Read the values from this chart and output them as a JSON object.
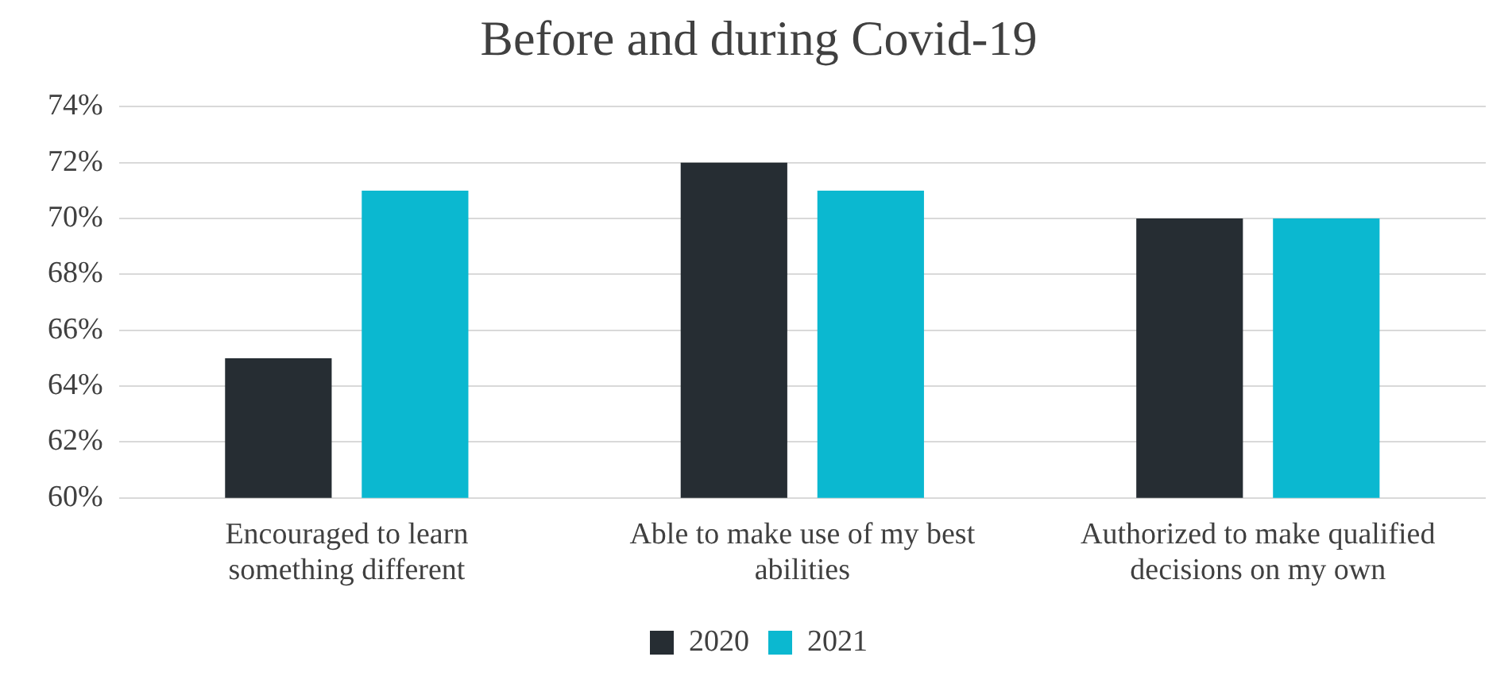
{
  "chart_data": {
    "type": "bar",
    "title": "Before and during Covid-19",
    "categories": [
      "Encouraged to learn something different",
      "Able to make use of my best abilities",
      "Authorized to make qualified decisions on my own"
    ],
    "series": [
      {
        "name": "2020",
        "color": "#262d33",
        "values": [
          65,
          72,
          70
        ]
      },
      {
        "name": "2021",
        "color": "#0bb8d0",
        "values": [
          71,
          71,
          70
        ]
      }
    ],
    "ylim": [
      60,
      74
    ],
    "yticks": [
      {
        "value": 60,
        "label": "60%"
      },
      {
        "value": 62,
        "label": "62%"
      },
      {
        "value": 64,
        "label": "64%"
      },
      {
        "value": 66,
        "label": "66%"
      },
      {
        "value": 68,
        "label": "68%"
      },
      {
        "value": 70,
        "label": "70%"
      },
      {
        "value": 72,
        "label": "72%"
      },
      {
        "value": 74,
        "label": "74%"
      }
    ],
    "grid": "y",
    "legend": "bottom"
  }
}
